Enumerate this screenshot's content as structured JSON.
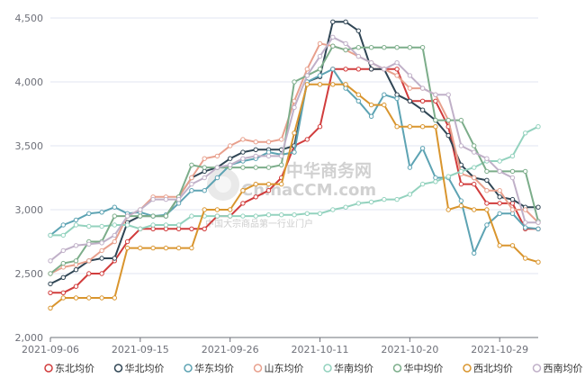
{
  "watermark": {
    "cn": "中华商务网",
    "en": "ChinaCCM.com",
    "tagline": "中国大宗商品第一行业门户"
  },
  "chart_data": {
    "type": "line",
    "title": "",
    "xlabel": "",
    "ylabel": "",
    "ylim": [
      2000,
      4500
    ],
    "yticks": [
      2000,
      2500,
      3000,
      3500,
      4000,
      4500
    ],
    "ytick_labels": [
      "2,000",
      "2,500",
      "3,000",
      "3,500",
      "4,000",
      "4,500"
    ],
    "x": [
      "2021-09-06",
      "2021-09-07",
      "2021-09-08",
      "2021-09-09",
      "2021-09-10",
      "2021-09-13",
      "2021-09-14",
      "2021-09-15",
      "2021-09-16",
      "2021-09-17",
      "2021-09-18",
      "2021-09-22",
      "2021-09-23",
      "2021-09-24",
      "2021-09-26",
      "2021-09-27",
      "2021-09-28",
      "2021-09-29",
      "2021-09-30",
      "2021-10-08",
      "2021-10-09",
      "2021-10-11",
      "2021-10-12",
      "2021-10-13",
      "2021-10-14",
      "2021-10-15",
      "2021-10-18",
      "2021-10-19",
      "2021-10-20",
      "2021-10-21",
      "2021-10-22",
      "2021-10-25",
      "2021-10-26",
      "2021-10-27",
      "2021-10-28",
      "2021-10-29",
      "2021-11-01",
      "2021-11-02",
      "2021-11-03"
    ],
    "xtick_indices": [
      0,
      7,
      14,
      21,
      28,
      35
    ],
    "xtick_labels": [
      "2021-09-06",
      "2021-09-15",
      "2021-09-26",
      "2021-10-11",
      "2021-10-20",
      "2021-10-29"
    ],
    "grid": "horizontal",
    "legend_position": "bottom",
    "series": [
      {
        "name": "东北均价",
        "color": "#d13c3c",
        "values": [
          2350,
          2350,
          2400,
          2500,
          2500,
          2600,
          2750,
          2850,
          2850,
          2850,
          2850,
          2850,
          2850,
          2950,
          2950,
          3050,
          3100,
          3150,
          3250,
          3500,
          3550,
          3650,
          4100,
          4100,
          4100,
          4100,
          4100,
          4100,
          3850,
          3850,
          3850,
          3650,
          3200,
          3200,
          3050,
          3050,
          3050,
          2850,
          2850
        ]
      },
      {
        "name": "华北均价",
        "color": "#2f4554",
        "values": [
          2420,
          2470,
          2530,
          2600,
          2620,
          2620,
          2900,
          2950,
          2950,
          2950,
          3100,
          3250,
          3300,
          3330,
          3400,
          3450,
          3470,
          3470,
          3470,
          3500,
          4000,
          4040,
          4470,
          4470,
          4400,
          4100,
          4100,
          3900,
          3850,
          3780,
          3700,
          3580,
          3350,
          3250,
          3230,
          3100,
          3080,
          3020,
          3020
        ]
      },
      {
        "name": "华东均价",
        "color": "#5da3b3",
        "values": [
          2800,
          2880,
          2920,
          2970,
          2980,
          3020,
          2970,
          2980,
          2950,
          2960,
          3050,
          3150,
          3150,
          3250,
          3350,
          3380,
          3400,
          3450,
          3430,
          3450,
          4000,
          4050,
          4100,
          3950,
          3850,
          3730,
          3900,
          3870,
          3330,
          3480,
          3250,
          3250,
          3070,
          2660,
          2880,
          2970,
          2970,
          2860,
          2850
        ]
      },
      {
        "name": "山东均价",
        "color": "#e8a08d",
        "values": [
          2500,
          2550,
          2570,
          2600,
          2680,
          2750,
          2950,
          3000,
          3100,
          3100,
          3100,
          3250,
          3400,
          3420,
          3500,
          3550,
          3530,
          3530,
          3550,
          3850,
          4100,
          4300,
          4280,
          4250,
          4200,
          4150,
          4100,
          4050,
          3950,
          3950,
          3900,
          3700,
          3280,
          3250,
          3150,
          3150,
          3000,
          3000,
          2900
        ]
      },
      {
        "name": "华南均价",
        "color": "#93d2be",
        "values": [
          2800,
          2800,
          2880,
          2870,
          2870,
          2880,
          2880,
          2850,
          2880,
          2880,
          2880,
          2950,
          2950,
          2950,
          2950,
          2950,
          2950,
          2960,
          2960,
          2960,
          2970,
          2970,
          3000,
          3020,
          3050,
          3060,
          3080,
          3080,
          3120,
          3200,
          3220,
          3260,
          3300,
          3330,
          3380,
          3380,
          3420,
          3600,
          3650
        ]
      },
      {
        "name": "华中均价",
        "color": "#7cad8a",
        "values": [
          2500,
          2580,
          2600,
          2750,
          2750,
          2950,
          2950,
          2950,
          2950,
          2950,
          3100,
          3350,
          3330,
          3330,
          3330,
          3330,
          3330,
          3330,
          3350,
          4000,
          4050,
          4100,
          4280,
          4250,
          4270,
          4270,
          4270,
          4270,
          4270,
          4270,
          3700,
          3700,
          3700,
          3500,
          3300,
          3300,
          3300,
          3300,
          2910
        ]
      },
      {
        "name": "西北均价",
        "color": "#d9952e",
        "values": [
          2230,
          2310,
          2310,
          2310,
          2310,
          2310,
          2700,
          2700,
          2700,
          2700,
          2700,
          2700,
          3000,
          3000,
          3000,
          3150,
          3200,
          3200,
          3200,
          3600,
          3980,
          3980,
          3980,
          3980,
          3900,
          3820,
          3820,
          3650,
          3650,
          3650,
          3650,
          3000,
          3030,
          3000,
          3000,
          2720,
          2720,
          2620,
          2590
        ]
      },
      {
        "name": "西南均价",
        "color": "#c0b0c8",
        "values": [
          2600,
          2680,
          2720,
          2730,
          2740,
          2800,
          2950,
          3000,
          3080,
          3080,
          3080,
          3200,
          3250,
          3330,
          3350,
          3400,
          3420,
          3420,
          3420,
          3800,
          4050,
          4200,
          4350,
          4300,
          4200,
          4150,
          4100,
          4150,
          4050,
          3950,
          3900,
          3900,
          3500,
          3450,
          3400,
          3300,
          3250,
          2900,
          2900
        ]
      }
    ]
  }
}
